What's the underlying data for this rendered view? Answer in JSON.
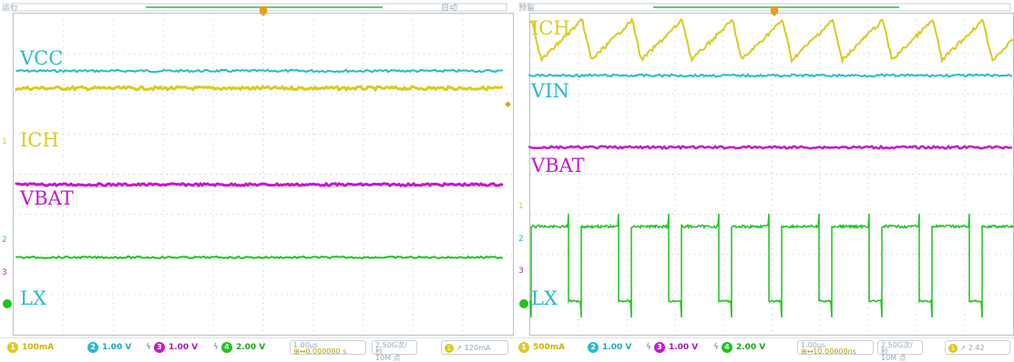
{
  "colors": {
    "ch1": "#d8cc1f",
    "ch2": "#22bcd1",
    "ch3": "#c319cc",
    "ch4": "#1fc21f",
    "grid": "#c3ccd4"
  },
  "scopes": [
    {
      "status": "运行",
      "trigger_status": "自动",
      "labels": {
        "vcc": "VCC",
        "ich": "ICH",
        "vbat": "VBAT",
        "lx": "LX"
      },
      "markers": {
        "ch1": "1",
        "ch2": "2",
        "ch3": "3",
        "ch4": "4"
      },
      "bottom": {
        "ch1": {
          "num": "1",
          "scale": "100mA"
        },
        "ch2": {
          "num": "2",
          "scale": "1.00 V"
        },
        "ch3": {
          "num": "3",
          "scale": "1.00 V"
        },
        "ch4": {
          "num": "4",
          "scale": "2.00 V"
        },
        "timebase": "1.00μs",
        "delay": "0.000000 s",
        "sample_rate": "2.50G次/秒",
        "points": "10M 点",
        "trig_ch": "1",
        "trig_level": "120mA"
      }
    },
    {
      "status": "预留",
      "labels": {
        "ich": "ICH",
        "vin": "VIN",
        "vbat": "VBAT",
        "lx": "LX"
      },
      "markers": {
        "ch1": "1",
        "ch2": "2",
        "ch3": "3",
        "ch4": "4"
      },
      "bottom": {
        "ch1": {
          "num": "1",
          "scale": "500mA"
        },
        "ch2": {
          "num": "2",
          "scale": "1.00 V"
        },
        "ch3": {
          "num": "3",
          "scale": "1.00 V"
        },
        "ch4": {
          "num": "4",
          "scale": "2.00 V"
        },
        "timebase": "1.00μs",
        "delay": "10.00000ns",
        "sample_rate": "2.50G次/秒",
        "points": "10M 点",
        "trig_ch": "1",
        "trig_level": "2.42"
      }
    }
  ]
}
